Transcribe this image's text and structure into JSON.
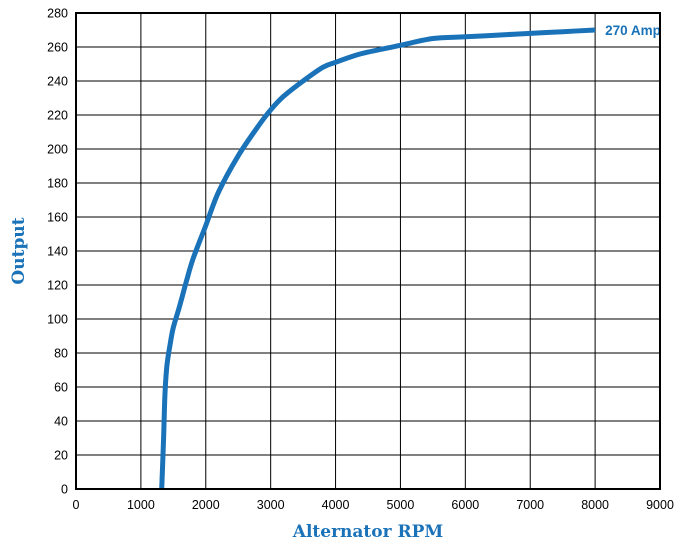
{
  "chart_data": {
    "type": "line",
    "title": "",
    "xlabel": "Alternator RPM",
    "ylabel": "Output",
    "xlim": [
      0,
      9000
    ],
    "ylim": [
      0,
      280
    ],
    "x_ticks": [
      0,
      1000,
      2000,
      3000,
      4000,
      5000,
      6000,
      7000,
      8000,
      9000
    ],
    "y_ticks": [
      0,
      20,
      40,
      60,
      80,
      100,
      120,
      140,
      160,
      180,
      200,
      220,
      240,
      260,
      280
    ],
    "grid": true,
    "legend": "none",
    "line_color": "#1a72b8",
    "label_color": "#1a72b8",
    "series": [
      {
        "x": [
          1320,
          1350,
          1370,
          1400,
          1450,
          1500,
          1600,
          1700,
          1800,
          2000,
          2200,
          2500,
          2800,
          3000,
          3200,
          3500,
          3800,
          4000,
          4300,
          4500,
          5000,
          5500,
          6000,
          6500,
          7000,
          7500,
          8000
        ],
        "y": [
          0,
          30,
          55,
          72,
          85,
          95,
          108,
          122,
          135,
          155,
          175,
          196,
          213,
          223,
          231,
          240,
          248,
          251,
          255,
          257,
          261,
          265,
          266,
          267,
          268,
          269,
          270
        ]
      }
    ],
    "annotations": [
      {
        "text": "270 Amp",
        "x": 8000,
        "y": 270
      }
    ]
  }
}
